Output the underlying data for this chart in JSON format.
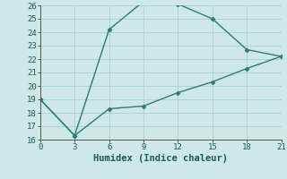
{
  "line1_x": [
    0,
    3,
    6,
    9,
    12,
    15,
    18,
    21
  ],
  "line1_y": [
    19,
    16.3,
    24.2,
    26.3,
    26.1,
    25,
    22.7,
    22.2
  ],
  "line2_x": [
    0,
    3,
    6,
    9,
    12,
    15,
    18,
    21
  ],
  "line2_y": [
    19,
    16.3,
    18.3,
    18.5,
    19.5,
    20.3,
    21.3,
    22.2
  ],
  "line_color": "#2d7d6e",
  "bg_color": "#cde8e5",
  "grid_color": "#aed4d0",
  "xlabel": "Humidex (Indice chaleur)",
  "xlim": [
    0,
    21
  ],
  "ylim": [
    16,
    26
  ],
  "xticks": [
    0,
    3,
    6,
    9,
    12,
    15,
    18,
    21
  ],
  "yticks": [
    16,
    17,
    18,
    19,
    20,
    21,
    22,
    23,
    24,
    25,
    26
  ],
  "label_fontsize": 7.5,
  "tick_fontsize": 6.5
}
